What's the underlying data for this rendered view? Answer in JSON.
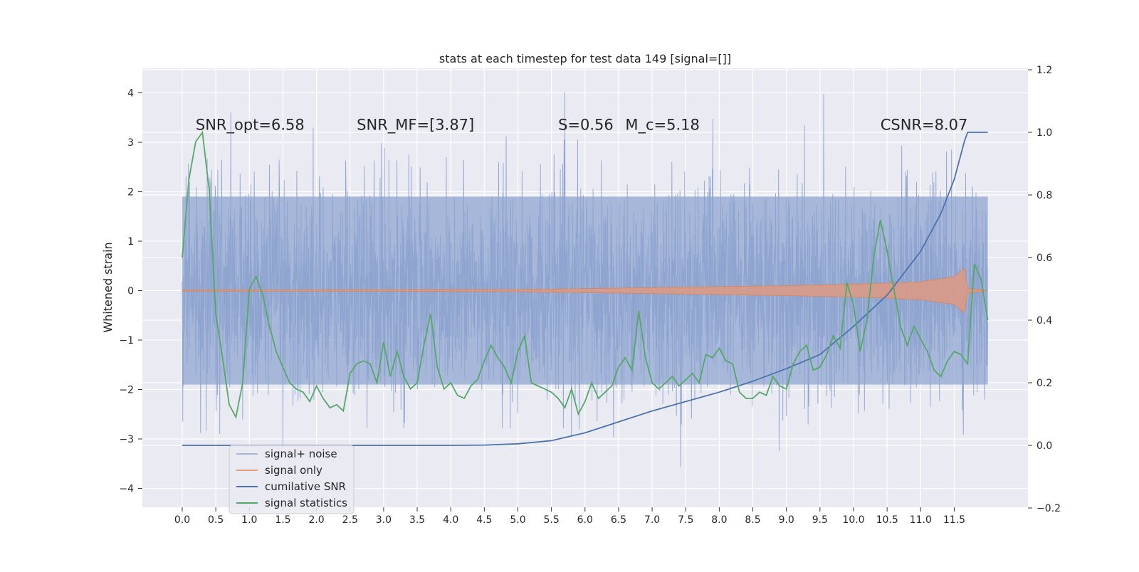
{
  "chart_data": {
    "type": "line",
    "title": "stats at each timestep for test data 149 [signal=[]]",
    "ylabel": "Whitened strain",
    "xlabel": "",
    "y2label": "",
    "xlim": [
      -0.6,
      12.6
    ],
    "ylim": [
      -4.4,
      4.5
    ],
    "y2lim": [
      -0.2,
      1.2
    ],
    "grid": true,
    "legend_position": "lower-left",
    "x_ticks": [
      "0.0",
      "0.5",
      "1.0",
      "1.5",
      "2.0",
      "2.5",
      "3.0",
      "3.5",
      "4.0",
      "4.5",
      "5.0",
      "5.5",
      "6.0",
      "6.5",
      "7.0",
      "7.5",
      "8.0",
      "8.5",
      "9.0",
      "9.5",
      "10.0",
      "10.5",
      "11.0",
      "11.5"
    ],
    "y_ticks": [
      "4",
      "3",
      "2",
      "1",
      "0",
      "−1",
      "−2",
      "−3",
      "−4"
    ],
    "y2_ticks": [
      "1.2",
      "1.0",
      "0.8",
      "0.6",
      "0.4",
      "0.2",
      "0.0",
      "−0.2"
    ],
    "annotations": [
      {
        "id": "snr-opt",
        "text": "SNR_opt=6.58",
        "x": 0.2,
        "y": 3.25
      },
      {
        "id": "snr-mf",
        "text": "SNR_MF=[3.87]",
        "x": 2.6,
        "y": 3.25
      },
      {
        "id": "s-stat",
        "text": "S=0.56",
        "x": 5.6,
        "y": 3.25
      },
      {
        "id": "mc",
        "text": "M_c=5.18",
        "x": 6.6,
        "y": 3.25
      },
      {
        "id": "csnr",
        "text": "CSNR=8.07",
        "x": 10.4,
        "y": 3.25
      }
    ],
    "series": [
      {
        "name": "signal+ noise",
        "color": "#8fa5d0",
        "axis": "left",
        "x_range": [
          0.0,
          12.0
        ],
        "typical_band": [
          -1.9,
          1.9
        ],
        "extreme_range": [
          -4.0,
          4.1
        ]
      },
      {
        "name": "signal only",
        "color": "#dd8452",
        "axis": "left",
        "x_range": [
          0.0,
          12.0
        ],
        "envelope": {
          "x": [
            0.0,
            5.0,
            6.0,
            7.0,
            8.0,
            9.0,
            10.0,
            10.5,
            11.0,
            11.5,
            11.65,
            11.7,
            12.0
          ],
          "amp": [
            0.01,
            0.02,
            0.04,
            0.06,
            0.08,
            0.1,
            0.13,
            0.15,
            0.18,
            0.28,
            0.45,
            0.05,
            0.0
          ]
        }
      },
      {
        "name": "cumilative SNR",
        "color": "#4c72b0",
        "axis": "right",
        "x": [
          0.0,
          1.0,
          2.0,
          3.0,
          4.0,
          4.5,
          5.0,
          5.5,
          6.0,
          6.5,
          7.0,
          7.5,
          8.0,
          8.5,
          9.0,
          9.5,
          10.0,
          10.5,
          11.0,
          11.3,
          11.5,
          11.65,
          11.7,
          12.0
        ],
        "y": [
          0.0,
          0.0,
          0.0,
          0.0,
          0.0,
          0.001,
          0.005,
          0.015,
          0.04,
          0.075,
          0.11,
          0.14,
          0.17,
          0.205,
          0.245,
          0.29,
          0.38,
          0.48,
          0.62,
          0.74,
          0.85,
          0.97,
          1.0,
          1.0
        ]
      },
      {
        "name": "signal statistics",
        "color": "#55a868",
        "axis": "right",
        "x": [
          0.0,
          0.1,
          0.2,
          0.3,
          0.4,
          0.5,
          0.6,
          0.7,
          0.8,
          0.9,
          1.0,
          1.1,
          1.2,
          1.3,
          1.4,
          1.5,
          1.6,
          1.7,
          1.8,
          1.9,
          2.0,
          2.1,
          2.2,
          2.3,
          2.4,
          2.5,
          2.6,
          2.7,
          2.8,
          2.9,
          3.0,
          3.1,
          3.2,
          3.3,
          3.4,
          3.5,
          3.6,
          3.7,
          3.8,
          3.9,
          4.0,
          4.1,
          4.2,
          4.3,
          4.4,
          4.5,
          4.6,
          4.7,
          4.8,
          4.9,
          5.0,
          5.1,
          5.2,
          5.3,
          5.4,
          5.5,
          5.6,
          5.7,
          5.8,
          5.9,
          6.0,
          6.1,
          6.2,
          6.3,
          6.4,
          6.5,
          6.6,
          6.7,
          6.8,
          6.9,
          7.0,
          7.1,
          7.2,
          7.3,
          7.4,
          7.5,
          7.6,
          7.7,
          7.8,
          7.9,
          8.0,
          8.1,
          8.2,
          8.3,
          8.4,
          8.5,
          8.6,
          8.7,
          8.8,
          8.9,
          9.0,
          9.1,
          9.2,
          9.3,
          9.4,
          9.5,
          9.6,
          9.7,
          9.8,
          9.9,
          10.0,
          10.1,
          10.2,
          10.3,
          10.4,
          10.5,
          10.6,
          10.7,
          10.8,
          10.9,
          11.0,
          11.1,
          11.2,
          11.3,
          11.4,
          11.5,
          11.6,
          11.7,
          11.8,
          11.9,
          12.0
        ],
        "y": [
          0.6,
          0.85,
          0.97,
          1.0,
          0.82,
          0.42,
          0.28,
          0.13,
          0.09,
          0.2,
          0.5,
          0.54,
          0.48,
          0.38,
          0.3,
          0.25,
          0.2,
          0.18,
          0.17,
          0.14,
          0.19,
          0.15,
          0.12,
          0.13,
          0.11,
          0.23,
          0.26,
          0.27,
          0.26,
          0.2,
          0.33,
          0.22,
          0.3,
          0.22,
          0.18,
          0.2,
          0.32,
          0.42,
          0.25,
          0.18,
          0.2,
          0.16,
          0.15,
          0.19,
          0.21,
          0.27,
          0.32,
          0.28,
          0.25,
          0.2,
          0.3,
          0.35,
          0.2,
          0.19,
          0.18,
          0.17,
          0.15,
          0.12,
          0.18,
          0.1,
          0.14,
          0.2,
          0.15,
          0.17,
          0.19,
          0.25,
          0.28,
          0.24,
          0.43,
          0.28,
          0.2,
          0.18,
          0.2,
          0.22,
          0.19,
          0.21,
          0.23,
          0.2,
          0.29,
          0.28,
          0.31,
          0.27,
          0.26,
          0.17,
          0.15,
          0.15,
          0.17,
          0.16,
          0.22,
          0.19,
          0.18,
          0.26,
          0.3,
          0.32,
          0.24,
          0.25,
          0.29,
          0.35,
          0.31,
          0.52,
          0.45,
          0.3,
          0.4,
          0.6,
          0.72,
          0.62,
          0.5,
          0.38,
          0.32,
          0.38,
          0.34,
          0.3,
          0.24,
          0.22,
          0.27,
          0.3,
          0.29,
          0.26,
          0.58,
          0.53,
          0.4
        ]
      }
    ]
  }
}
